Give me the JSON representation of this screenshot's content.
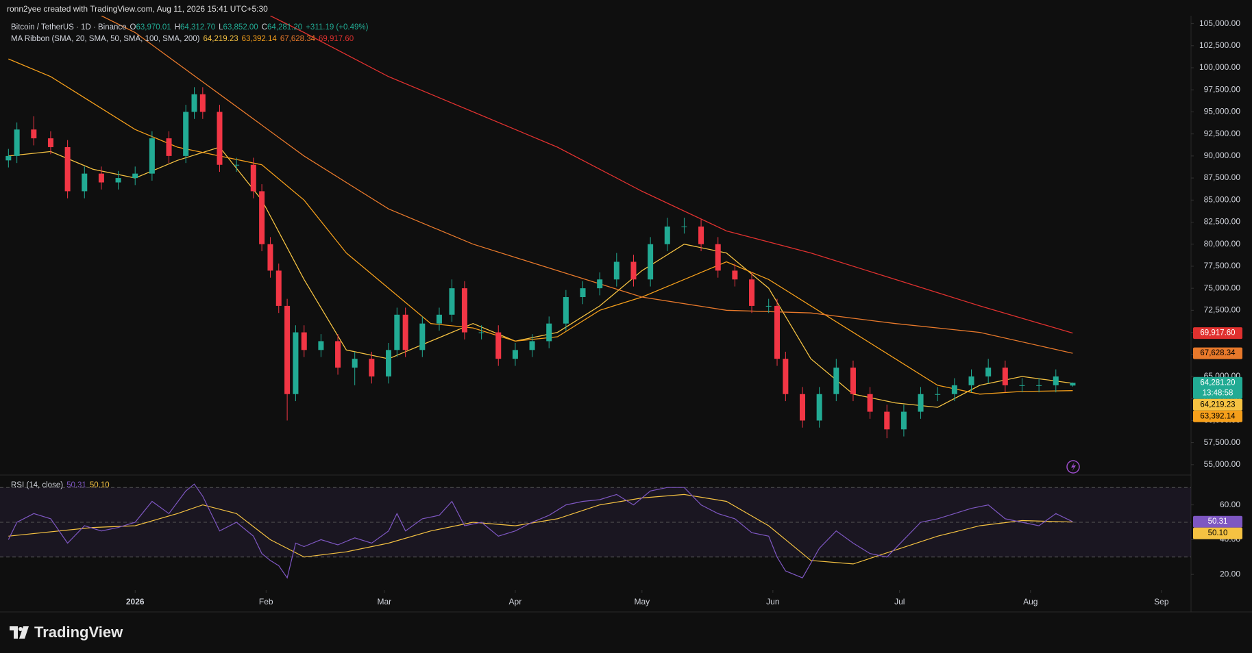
{
  "header": "ronn2yee created with TradingView.com, Aug 11, 2026 15:41 UTC+5:30",
  "logo": "TradingView",
  "chart_data": [
    {
      "type": "candlestick",
      "legend": {
        "symbol": "Bitcoin / TetherUS · 1D · Binance",
        "ohlc": [
          {
            "label": "O",
            "value": "63,970.01"
          },
          {
            "label": "H",
            "value": "64,312.70"
          },
          {
            "label": "L",
            "value": "63,852.00"
          },
          {
            "label": "C",
            "value": "64,281.20"
          }
        ],
        "change": "+311.19 (+0.49%)",
        "ma_title": "MA Ribbon (SMA, 20, SMA, 50, SMA, 100, SMA, 200)",
        "ma_values": [
          "64,219.23",
          "63,392.14",
          "67,628.34",
          "69,917.60"
        ],
        "close": "64,281.20",
        "countdown": "13:48:58"
      },
      "up_color": "#22ab94",
      "down_color": "#f23645",
      "grid": false,
      "x": [
        -30,
        -28,
        -24,
        -20,
        -16,
        -12,
        -8,
        -4,
        0,
        4,
        8,
        12,
        14,
        16,
        20,
        24,
        28,
        30,
        32,
        34,
        36,
        38,
        40,
        44,
        48,
        52,
        56,
        60,
        62,
        64,
        68,
        72,
        75,
        78,
        82,
        86,
        90,
        94,
        98,
        102,
        106,
        110,
        114,
        118,
        122,
        126,
        130,
        134,
        138,
        142,
        146,
        150,
        152,
        154,
        158,
        162,
        166,
        170,
        174,
        178,
        182,
        186,
        190,
        194,
        198,
        202,
        206,
        210,
        214,
        218,
        222
      ],
      "open": [
        89500,
        90000,
        93000,
        92000,
        91000,
        86000,
        88000,
        87000,
        87500,
        88000,
        92000,
        90000,
        95000,
        97000,
        95000,
        89000,
        89000,
        86000,
        80000,
        77000,
        73000,
        63000,
        70000,
        68000,
        69000,
        66000,
        67000,
        65000,
        68000,
        72000,
        68000,
        71000,
        72000,
        75000,
        70000,
        70000,
        67000,
        68000,
        69000,
        71000,
        74000,
        75000,
        76000,
        78000,
        76000,
        80000,
        82000,
        82000,
        80000,
        77000,
        76000,
        73000,
        73000,
        67000,
        63000,
        60000,
        63000,
        66000,
        63000,
        61000,
        59000,
        61000,
        63000,
        63000,
        64000,
        65000,
        66000,
        64000,
        64000,
        64000,
        63970.01
      ],
      "high": [
        90800,
        93800,
        94500,
        92800,
        91800,
        88800,
        88800,
        88300,
        88800,
        92800,
        92800,
        95800,
        97800,
        97800,
        95800,
        89800,
        89800,
        86800,
        80800,
        77800,
        73800,
        70800,
        70800,
        69800,
        69800,
        67800,
        67800,
        68800,
        72800,
        72800,
        71800,
        72800,
        76000,
        75800,
        70800,
        70800,
        68800,
        69800,
        71800,
        74800,
        75800,
        76800,
        79000,
        78800,
        80800,
        83000,
        83000,
        82800,
        80800,
        77800,
        76800,
        73800,
        73800,
        67800,
        63800,
        63800,
        67000,
        66800,
        63800,
        61800,
        61800,
        63800,
        63800,
        64800,
        65800,
        67000,
        66800,
        64800,
        64800,
        65800,
        64312.7
      ],
      "low": [
        88700,
        89200,
        91200,
        90200,
        85200,
        85200,
        86200,
        86200,
        86700,
        87200,
        89200,
        89200,
        94200,
        94200,
        88200,
        88200,
        85200,
        79200,
        76200,
        72200,
        60000,
        62200,
        67200,
        67200,
        65200,
        64000,
        64200,
        64200,
        67200,
        67200,
        67200,
        70200,
        71200,
        69200,
        69200,
        66200,
        66200,
        67200,
        68200,
        70200,
        73200,
        74200,
        75200,
        75200,
        75200,
        79200,
        81200,
        79200,
        76200,
        75200,
        72200,
        72200,
        66200,
        62200,
        59200,
        59200,
        62200,
        62200,
        60200,
        58000,
        58200,
        60200,
        62200,
        62200,
        63200,
        64200,
        63200,
        63200,
        63200,
        63200,
        63852
      ],
      "close": [
        90000,
        93000,
        92000,
        91000,
        86000,
        88000,
        87000,
        87500,
        88000,
        92000,
        90000,
        95000,
        97000,
        95000,
        89000,
        89000,
        86000,
        80000,
        77000,
        73000,
        63000,
        70000,
        68000,
        69000,
        66000,
        67000,
        65000,
        68000,
        72000,
        68000,
        71000,
        72000,
        75000,
        70000,
        70000,
        67000,
        68000,
        69000,
        71000,
        74000,
        75000,
        76000,
        78000,
        76000,
        80000,
        82000,
        82000,
        80000,
        77000,
        76000,
        73000,
        73000,
        67000,
        63000,
        60000,
        63000,
        66000,
        63000,
        61000,
        59000,
        61000,
        63000,
        63000,
        64000,
        65000,
        66000,
        64000,
        64000,
        64000,
        65000,
        64281.2
      ],
      "series": [
        {
          "color": "#f5c242",
          "x": [
            -30,
            -20,
            -10,
            0,
            10,
            20,
            30,
            40,
            50,
            60,
            70,
            80,
            90,
            100,
            110,
            120,
            130,
            140,
            150,
            160,
            170,
            180,
            190,
            200,
            210,
            222
          ],
          "values": [
            90000,
            90500,
            88500,
            87500,
            89500,
            91000,
            85000,
            76000,
            68000,
            67000,
            69000,
            71000,
            69000,
            70000,
            73000,
            77000,
            80000,
            79000,
            75000,
            67000,
            63000,
            62000,
            61500,
            64000,
            65000,
            64219.23
          ]
        },
        {
          "color": "#f59f1b",
          "x": [
            -30,
            -20,
            -10,
            0,
            10,
            20,
            30,
            40,
            50,
            60,
            70,
            80,
            90,
            100,
            110,
            120,
            130,
            140,
            150,
            160,
            170,
            180,
            190,
            200,
            210,
            222
          ],
          "values": [
            101000,
            99000,
            96000,
            93000,
            91000,
            90000,
            89000,
            85000,
            79000,
            75000,
            71000,
            70500,
            69000,
            69500,
            72500,
            74000,
            76000,
            78000,
            76000,
            73000,
            70000,
            67000,
            64000,
            63000,
            63300,
            63392.14
          ]
        },
        {
          "color": "#e8792b",
          "x": [
            -8,
            0,
            20,
            40,
            60,
            80,
            100,
            120,
            140,
            160,
            180,
            200,
            222
          ],
          "values": [
            105900,
            104000,
            97000,
            90000,
            84000,
            80000,
            77000,
            74000,
            72500,
            72200,
            71000,
            70000,
            67628.34
          ]
        },
        {
          "color": "#e0312f",
          "x": [
            32,
            40,
            60,
            80,
            100,
            120,
            140,
            160,
            180,
            200,
            222
          ],
          "values": [
            105900,
            104000,
            99000,
            95000,
            91000,
            86000,
            81500,
            79000,
            76000,
            73000,
            69917.6
          ]
        }
      ],
      "xlim": [
        -32,
        250
      ],
      "xticks": [
        {
          "value": 0,
          "label": "2026"
        },
        {
          "value": 31,
          "label": "Feb"
        },
        {
          "value": 59,
          "label": "Mar"
        },
        {
          "value": 90,
          "label": "Apr"
        },
        {
          "value": 120,
          "label": "May"
        },
        {
          "value": 151,
          "label": "Jun"
        },
        {
          "value": 181,
          "label": "Jul"
        },
        {
          "value": 212,
          "label": "Aug"
        },
        {
          "value": 243,
          "label": "Sep"
        }
      ],
      "ylim": [
        53900,
        105900
      ],
      "yticks": [
        {
          "value": 55000,
          "label": "55,000.00"
        },
        {
          "value": 57500,
          "label": "57,500.00"
        },
        {
          "value": 60000,
          "label": "60,000.00"
        },
        {
          "value": 62500,
          "label": "62,500.00"
        },
        {
          "value": 65000,
          "label": "65,000.00"
        },
        {
          "value": 67500,
          "label": "67,500.00"
        },
        {
          "value": 70000,
          "label": "70,000.00"
        },
        {
          "value": 72500,
          "label": "72,500.00"
        },
        {
          "value": 75000,
          "label": "75,000.00"
        },
        {
          "value": 77500,
          "label": "77,500.00"
        },
        {
          "value": 80000,
          "label": "80,000.00"
        },
        {
          "value": 82500,
          "label": "82,500.00"
        },
        {
          "value": 85000,
          "label": "85,000.00"
        },
        {
          "value": 87500,
          "label": "87,500.00"
        },
        {
          "value": 90000,
          "label": "90,000.00"
        },
        {
          "value": 92500,
          "label": "92,500.00"
        },
        {
          "value": 95000,
          "label": "95,000.00"
        },
        {
          "value": 97500,
          "label": "97,500.00"
        },
        {
          "value": 100000,
          "label": "100,000.00"
        },
        {
          "value": 102500,
          "label": "102,500.00"
        },
        {
          "value": 105000,
          "label": "105,000.00"
        }
      ]
    },
    {
      "type": "line",
      "legend": {
        "values": [
          "50.31",
          "50.10"
        ]
      },
      "bands": [
        70,
        50,
        30
      ],
      "band_fill": "#7e57c2",
      "series": [
        {
          "name": "RSI (14, close)",
          "color": "#7e57c2",
          "x": [
            -30,
            -28,
            -24,
            -20,
            -16,
            -12,
            -8,
            -4,
            0,
            4,
            8,
            12,
            14,
            16,
            20,
            24,
            28,
            30,
            32,
            34,
            36,
            38,
            40,
            44,
            48,
            52,
            56,
            60,
            62,
            64,
            68,
            72,
            75,
            78,
            82,
            86,
            90,
            94,
            98,
            102,
            106,
            110,
            114,
            118,
            122,
            126,
            130,
            134,
            138,
            142,
            146,
            150,
            152,
            154,
            158,
            162,
            166,
            170,
            174,
            178,
            182,
            186,
            190,
            194,
            198,
            202,
            206,
            210,
            214,
            218,
            222
          ],
          "values": [
            40,
            50,
            55,
            52,
            38,
            48,
            45,
            47,
            50,
            62,
            55,
            68,
            72,
            65,
            45,
            50,
            42,
            32,
            28,
            25,
            18,
            38,
            36,
            40,
            37,
            41,
            38,
            45,
            55,
            45,
            52,
            54,
            62,
            48,
            50,
            42,
            45,
            50,
            54,
            60,
            62,
            63,
            66,
            60,
            68,
            70,
            70,
            60,
            55,
            52,
            44,
            42,
            30,
            22,
            18,
            35,
            45,
            38,
            32,
            30,
            40,
            50,
            52,
            55,
            58,
            60,
            52,
            50,
            48,
            55,
            50.31
          ]
        },
        {
          "color": "#f5c242",
          "x": [
            -30,
            -10,
            0,
            10,
            16,
            24,
            32,
            40,
            50,
            60,
            70,
            80,
            90,
            100,
            110,
            120,
            130,
            140,
            150,
            160,
            170,
            180,
            190,
            200,
            210,
            222
          ],
          "values": [
            42,
            47,
            48,
            55,
            60,
            55,
            40,
            30,
            33,
            38,
            45,
            50,
            48,
            52,
            60,
            64,
            66,
            62,
            48,
            28,
            26,
            34,
            42,
            48,
            51,
            50.1
          ]
        }
      ],
      "xlim": [
        -32,
        250
      ],
      "ylim": [
        11,
        76
      ],
      "yticks": [
        {
          "value": 20,
          "label": "20.00"
        },
        {
          "value": 40,
          "label": "40.00"
        },
        {
          "value": 60,
          "label": "60.00"
        }
      ]
    }
  ]
}
